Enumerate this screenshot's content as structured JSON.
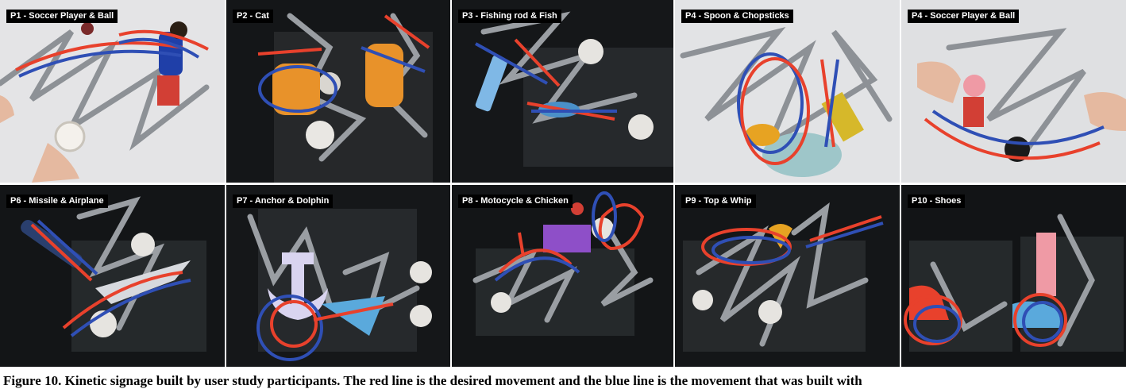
{
  "figure": {
    "caption": "Figure 10. Kinetic signage built by user study participants. The red line is the desired movement and the blue line is the movement that was built with",
    "colors": {
      "desired_movement": "#e8412c",
      "built_movement": "#2f4fb5"
    },
    "panels": [
      {
        "label": "P1 - Soccer Player & Ball",
        "background": "light"
      },
      {
        "label": "P2 - Cat",
        "background": "dark"
      },
      {
        "label": "P3 - Fishing rod & Fish",
        "background": "dark"
      },
      {
        "label": "P4 - Spoon & Chopsticks",
        "background": "light"
      },
      {
        "label": "P4 - Soccer Player & Ball",
        "background": "light"
      },
      {
        "label": "P6 - Missile & Airplane",
        "background": "dark"
      },
      {
        "label": "P7 - Anchor & Dolphin",
        "background": "dark"
      },
      {
        "label": "P8 - Motocycle & Chicken",
        "background": "dark"
      },
      {
        "label": "P9 - Top & Whip",
        "background": "dark"
      },
      {
        "label": "P10 - Shoes",
        "background": "dark"
      }
    ]
  }
}
